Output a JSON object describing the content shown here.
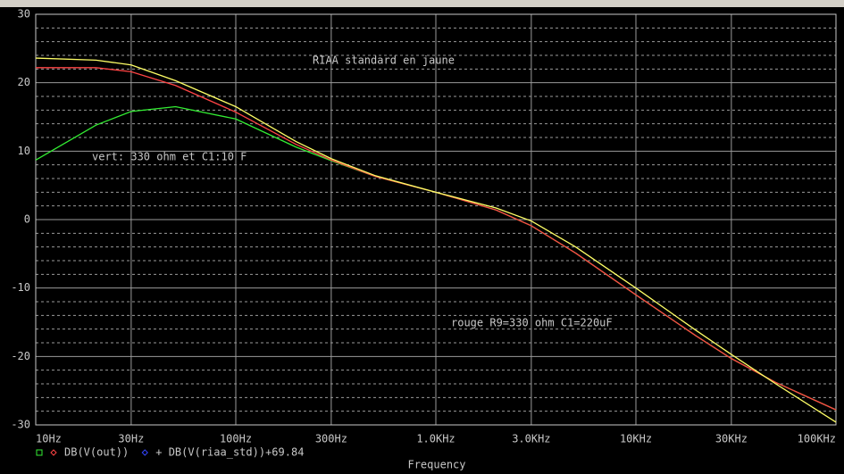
{
  "chart_data": {
    "type": "line",
    "xscale": "log",
    "x_label": "Frequency",
    "xlim": [
      10,
      100000
    ],
    "xticks": [
      {
        "value": 10,
        "label": "10Hz"
      },
      {
        "value": 30,
        "label": "30Hz"
      },
      {
        "value": 100,
        "label": "100Hz"
      },
      {
        "value": 300,
        "label": "300Hz"
      },
      {
        "value": 1000,
        "label": "1.0KHz"
      },
      {
        "value": 3000,
        "label": "3.0KHz"
      },
      {
        "value": 10000,
        "label": "10KHz"
      },
      {
        "value": 30000,
        "label": "30KHz"
      },
      {
        "value": 100000,
        "label": "100KHz"
      }
    ],
    "ylim": [
      -30,
      30
    ],
    "yticks": [
      30,
      20,
      10,
      0,
      -10,
      -20,
      -30
    ],
    "yminorticks": [
      28,
      26,
      24,
      22,
      18,
      16,
      14,
      12,
      8,
      6,
      4,
      2,
      -2,
      -4,
      -6,
      -8,
      -12,
      -14,
      -16,
      -18,
      -22,
      -24,
      -26,
      -28
    ],
    "grid": true,
    "x": [
      10,
      20,
      30,
      50,
      100,
      200,
      300,
      500,
      1000,
      2000,
      3000,
      5000,
      10000,
      20000,
      30000,
      50000,
      100000
    ],
    "series": [
      {
        "color": "#33ee33",
        "values": [
          8.7,
          13.8,
          15.8,
          16.5,
          14.7,
          10.6,
          8.6,
          6.3,
          4.0,
          1.4,
          -0.9,
          -4.9,
          -11.0,
          -17.0,
          -20.3,
          -23.8,
          -27.8
        ]
      },
      {
        "color": "#ff4444",
        "values": [
          22.2,
          22.2,
          21.6,
          19.6,
          15.7,
          11.0,
          8.7,
          6.3,
          4.0,
          1.4,
          -0.9,
          -4.9,
          -11.0,
          -17.0,
          -20.3,
          -23.8,
          -27.8
        ]
      },
      {
        "color": "#ffff66",
        "values": [
          23.6,
          23.3,
          22.6,
          20.3,
          16.5,
          11.4,
          8.9,
          6.4,
          4.0,
          1.7,
          -0.2,
          -4.0,
          -10.0,
          -16.2,
          -19.7,
          -24.0,
          -29.6
        ]
      }
    ],
    "legend": [
      {
        "label": "DB(V(out))",
        "markers": [
          "#33ee33",
          "#ff4444"
        ]
      },
      {
        "label": "+ DB(V(riaa_std))+69.84",
        "markers": [
          "#3344ff"
        ]
      }
    ],
    "annotations": [
      "RIAA standard en jaune",
      "vert: 330 ohm et C1:10 F",
      "rouge  R9=330 ohm C1=220uF"
    ]
  }
}
